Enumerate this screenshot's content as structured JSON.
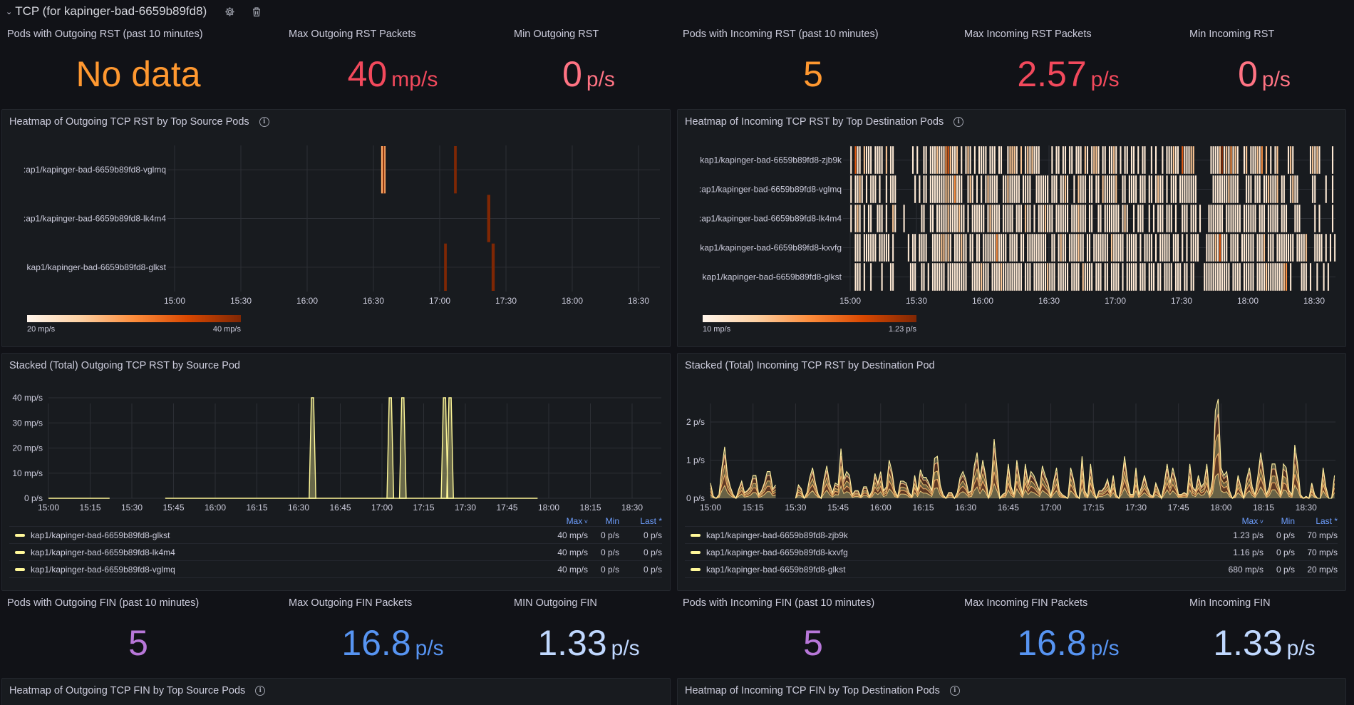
{
  "row": {
    "title": "TCP (for kapinger-bad-6659b89fd8)",
    "collapse_icon": "chevron-down-icon",
    "settings_icon": "gear-icon",
    "delete_icon": "trash-icon"
  },
  "stats_rst": [
    {
      "title": "Pods with Outgoing RST (past 10 minutes)",
      "value": "No data",
      "unit": "",
      "color": "#ff9830"
    },
    {
      "title": "Max Outgoing RST Packets",
      "value": "40",
      "unit": "mp/s",
      "color": "#f2495c"
    },
    {
      "title": "Min Outgoing RST",
      "value": "0",
      "unit": "p/s",
      "color": "#ff7383"
    },
    {
      "title": "Pods with Incoming RST (past 10 minutes)",
      "value": "5",
      "unit": "",
      "color": "#ff9830"
    },
    {
      "title": "Max Incoming RST Packets",
      "value": "2.57",
      "unit": "p/s",
      "color": "#f2495c"
    },
    {
      "title": "Min Incoming RST",
      "value": "0",
      "unit": "p/s",
      "color": "#ff7383"
    }
  ],
  "stats_fin": [
    {
      "title": "Pods with Outgoing FIN (past 10 minutes)",
      "value": "5",
      "unit": "",
      "color": "#b877d9"
    },
    {
      "title": "Max Outgoing FIN Packets",
      "value": "16.8",
      "unit": "p/s",
      "color": "#5794f2"
    },
    {
      "title": "MIN Outgoing FIN",
      "value": "1.33",
      "unit": "p/s",
      "color": "#c0d8ff"
    },
    {
      "title": "Pods with Incoming FIN (past 10 minutes)",
      "value": "5",
      "unit": "",
      "color": "#b877d9"
    },
    {
      "title": "Max Incoming FIN Packets",
      "value": "16.8",
      "unit": "p/s",
      "color": "#5794f2"
    },
    {
      "title": "Min Incoming FIN",
      "value": "1.33",
      "unit": "p/s",
      "color": "#c0d8ff"
    }
  ],
  "panels": {
    "heat_out": {
      "title": "Heatmap of Outgoing TCP RST by Top Source Pods",
      "info_icon": "info-icon"
    },
    "heat_in": {
      "title": "Heatmap of Incoming TCP RST by Top Destination Pods",
      "info_icon": "info-icon"
    },
    "ts_out": {
      "title": "Stacked (Total) Outgoing TCP RST by Source Pod"
    },
    "ts_in": {
      "title": "Stacked (Total) Incoming TCP RST by Destination Pod"
    },
    "heat_out_fin": {
      "title": "Heatmap of Outgoing TCP FIN by Top Source Pods",
      "info_icon": "info-icon"
    },
    "heat_in_fin": {
      "title": "Heatmap of Incoming TCP FIN by Top Destination Pods",
      "info_icon": "info-icon"
    }
  },
  "chart_data": [
    {
      "id": "heat_out",
      "type": "heatmap",
      "title": "Heatmap of Outgoing TCP RST by Top Source Pods",
      "x_start": "15:00",
      "x_ticks": [
        "15:00",
        "15:30",
        "16:00",
        "16:30",
        "17:00",
        "17:30",
        "18:00",
        "18:30"
      ],
      "bucket_minutes": 1,
      "rows": [
        "kap1/kapinger-bad-6659b89fd8-vglmq",
        "kap1/kapinger-bad-6659b89fd8-lk4m4",
        "kap1/kapinger-bad-6659b89fd8-glkst"
      ],
      "row_labels": [
        ":ap1/kapinger-bad-6659b89fd8-vglmq",
        ":ap1/kapinger-bad-6659b89fd8-lk4m4",
        "kap1/kapinger-bad-6659b89fd8-glkst"
      ],
      "cells": [
        {
          "row": 0,
          "start_min": 93.5,
          "end_min": 95.5,
          "value": 0.4
        },
        {
          "row": 0,
          "start_min": 94.3,
          "end_min": 94.9,
          "value": 1.0
        },
        {
          "row": 0,
          "start_min": 126.5,
          "end_min": 127.7,
          "value": 1.0
        },
        {
          "row": 1,
          "start_min": 141.5,
          "end_min": 142.9,
          "value": 1.0
        },
        {
          "row": 2,
          "start_min": 122.0,
          "end_min": 123.2,
          "value": 1.0
        },
        {
          "row": 2,
          "start_min": 143.5,
          "end_min": 144.9,
          "value": 1.0
        }
      ],
      "scale_min_label": "20 mp/s",
      "scale_max_label": "40 mp/s"
    },
    {
      "id": "heat_in",
      "type": "heatmap",
      "title": "Heatmap of Incoming TCP RST by Top Destination Pods",
      "x_start": "15:00",
      "x_ticks": [
        "15:00",
        "15:30",
        "16:00",
        "16:30",
        "17:00",
        "17:30",
        "18:00",
        "18:30"
      ],
      "bucket_minutes": 1,
      "rows": [
        "kap1/kapinger-bad-6659b89fd8-zjb9k",
        "kap1/kapinger-bad-6659b89fd8-vglmq",
        "kap1/kapinger-bad-6659b89fd8-lk4m4",
        "kap1/kapinger-bad-6659b89fd8-kxvfg",
        "kap1/kapinger-bad-6659b89fd8-glkst"
      ],
      "row_labels": [
        "kap1/kapinger-bad-6659b89fd8-zjb9k",
        ":ap1/kapinger-bad-6659b89fd8-vglmq",
        ":ap1/kapinger-bad-6659b89fd8-lk4m4",
        "kap1/kapinger-bad-6659b89fd8-kxvfg",
        "kap1/kapinger-bad-6659b89fd8-glkst"
      ],
      "row_cells": [
        "10411021110111102011000000001010011011121113421120101210101111011101100122210201212111000001011011011011102101221011011210101101101011001010010111211041112200000001111261213121001201112130201012000012100000001212100000101",
        "10112101011101001011100000000101011011111112211311100121010101211110011211111011110011111101110112100102111011011021111120011011110111011012110101110111111110000000111111121111000111011101121112011001211000000110000100100",
        "10121010110011101002100010000000110011011111211112110101111110121111011111011102110101112111011111101112111011001101111111012100101110010101110111010011101110100011111110111111101111110111011111011100011100000010100000100",
        "00111011111101111101000000101101111001111221210111211011011011111131111011110110111111111001101211011112110110111111102111110111110101111010111110111010101111000111121411101111011111101112011101111111101111200011110101010",
        "00111010010000100011000000011100110101111110111111111001111211101111211111111101110111111211101111101111021111011101101111010111110111011101101111011101101100001111111111110111101111101111211111112301000011101001001010"
      ],
      "scale_min_label": "10 mp/s",
      "scale_max_label": "1.23 p/s"
    },
    {
      "id": "ts_out",
      "type": "area",
      "title": "Stacked (Total) Outgoing TCP RST by Source Pod",
      "x_start": "15:00",
      "x_ticks": [
        "15:00",
        "15:15",
        "15:30",
        "15:45",
        "16:00",
        "16:15",
        "16:30",
        "16:45",
        "17:00",
        "17:15",
        "17:30",
        "17:45",
        "18:00",
        "18:15",
        "18:30"
      ],
      "y_ticks": [
        "0 p/s",
        "10 mp/s",
        "20 mp/s",
        "30 mp/s",
        "40 mp/s"
      ],
      "ylim": [
        0,
        40
      ],
      "yunit": "mp/s",
      "segments": [
        {
          "from_min": 0,
          "to_min": 22,
          "value": 0
        },
        {
          "from_min": 42,
          "to_min": 176,
          "value": 0
        }
      ],
      "spikes": [
        {
          "at_min": 95,
          "value": 40
        },
        {
          "at_min": 123,
          "value": 40
        },
        {
          "at_min": 127.5,
          "value": 40
        },
        {
          "at_min": 142.5,
          "value": 40
        },
        {
          "at_min": 144.5,
          "value": 40
        }
      ],
      "legend": {
        "columns": [
          "Max",
          "Min",
          "Last *"
        ],
        "rows": [
          {
            "name": "kap1/kapinger-bad-6659b89fd8-glkst",
            "max": "40 mp/s",
            "min": "0 p/s",
            "last": "0 p/s"
          },
          {
            "name": "kap1/kapinger-bad-6659b89fd8-lk4m4",
            "max": "40 mp/s",
            "min": "0 p/s",
            "last": "0 p/s"
          },
          {
            "name": "kap1/kapinger-bad-6659b89fd8-vglmq",
            "max": "40 mp/s",
            "min": "0 p/s",
            "last": "0 p/s"
          }
        ]
      }
    },
    {
      "id": "ts_in",
      "type": "area",
      "title": "Stacked (Total) Incoming TCP RST by Destination Pod",
      "x_start": "15:00",
      "x_ticks": [
        "15:00",
        "15:15",
        "15:30",
        "15:45",
        "16:00",
        "16:15",
        "16:30",
        "16:45",
        "17:00",
        "17:15",
        "17:30",
        "17:45",
        "18:00",
        "18:15",
        "18:30"
      ],
      "y_ticks": [
        "0 p/s",
        "1 p/s",
        "2 p/s"
      ],
      "ylim": [
        0,
        2.75
      ],
      "yunit": "p/s",
      "gap_minutes": [
        [
          24,
          29
        ]
      ],
      "total": [
        0.4,
        0.05,
        0,
        0.1,
        0.8,
        1.35,
        0.6,
        0.3,
        0.1,
        0,
        0.25,
        0.45,
        0.15,
        0.2,
        0.3,
        0.6,
        0.6,
        0.1,
        0.2,
        0.4,
        0.7,
        0.7,
        0.25,
        0.35,
        0.3,
        0,
        0,
        0,
        0,
        0,
        0,
        0.35,
        0.25,
        0,
        0.15,
        0.55,
        0.8,
        0.4,
        0.1,
        0,
        0.5,
        0.85,
        0.4,
        0.15,
        0.4,
        0.35,
        1.3,
        0.5,
        0.7,
        0.6,
        0.1,
        0.2,
        0.2,
        0.05,
        0.3,
        0.3,
        0.05,
        0.2,
        0.65,
        0.4,
        0.7,
        0.2,
        0.3,
        1.0,
        0.7,
        0.2,
        0.05,
        0.45,
        0.45,
        0.4,
        0.15,
        0.05,
        0.6,
        0.2,
        0.75,
        0.55,
        0.55,
        0.4,
        0.2,
        1.05,
        1.1,
        0.35,
        0.1,
        0,
        0.15,
        0.15,
        0,
        0.15,
        0.55,
        0.7,
        0.5,
        0.15,
        0.2,
        0.85,
        1.2,
        0.5,
        1.0,
        0.6,
        0,
        0.4,
        1.55,
        0.8,
        0,
        0.1,
        0.15,
        0.9,
        0.3,
        0.1,
        1.0,
        0.5,
        0.1,
        0.9,
        0.4,
        0.7,
        0.6,
        0.4,
        0.2,
        0.85,
        0.6,
        0.4,
        0.05,
        0.45,
        0.8,
        0.2,
        0.1,
        0.05,
        0,
        0.8,
        0.5,
        0.1,
        0,
        1.1,
        0.2,
        0.05,
        0.9,
        0.3,
        0,
        0.2,
        0.2,
        0.3,
        0.5,
        0.15,
        0.6,
        0.1,
        0,
        0.45,
        1.1,
        0.5,
        0.1,
        0.1,
        0.8,
        0.1,
        0.3,
        0.6,
        0.3,
        0.1,
        0.05,
        0.4,
        0.2,
        0,
        0.4,
        0.9,
        0.4,
        0.8,
        0.5,
        0.1,
        0.1,
        0.15,
        0.1,
        0.9,
        0.3,
        0.2,
        0.6,
        0.3,
        0.4,
        0.9,
        0.1,
        0.5,
        2.3,
        2.6,
        0.8,
        0.6,
        0.7,
        0.2,
        0,
        0.1,
        0.6,
        0.3,
        0,
        0.5,
        0.8,
        0.3,
        0.1,
        0.6,
        1.2,
        0.7,
        0.1,
        0.3,
        0.9,
        0.9,
        0.5,
        0.1,
        0.9,
        0.8,
        0.2,
        0.1,
        1.4,
        0.9,
        0.1,
        0,
        0.05,
        0,
        0.4,
        0.1,
        0,
        0,
        0.8,
        0.3,
        0,
        0,
        0.6
      ],
      "layer_fractions": [
        0.25,
        0.2,
        0.2,
        0.2,
        0.15
      ],
      "legend": {
        "columns": [
          "Max",
          "Min",
          "Last *"
        ],
        "rows": [
          {
            "name": "kap1/kapinger-bad-6659b89fd8-zjb9k",
            "max": "1.23 p/s",
            "min": "0 p/s",
            "last": "70 mp/s"
          },
          {
            "name": "kap1/kapinger-bad-6659b89fd8-kxvfg",
            "max": "1.16 p/s",
            "min": "0 p/s",
            "last": "70 mp/s"
          },
          {
            "name": "kap1/kapinger-bad-6659b89fd8-glkst",
            "max": "680 mp/s",
            "min": "0 p/s",
            "last": "20 mp/s"
          }
        ]
      }
    }
  ]
}
